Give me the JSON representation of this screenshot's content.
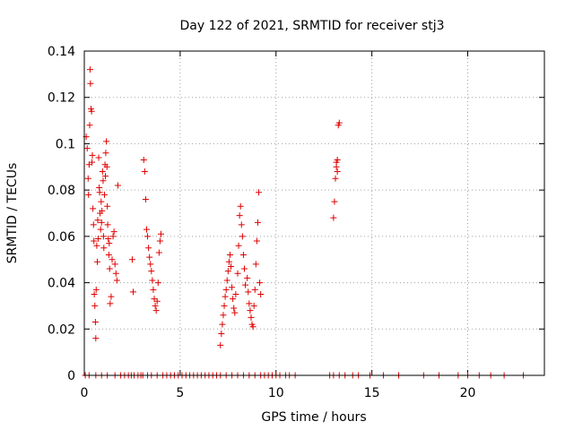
{
  "chart_data": {
    "type": "scatter",
    "title": "Day 122 of 2021, SRMTID for receiver stj3",
    "xlabel": "GPS time / hours",
    "ylabel": "SRMTID / TECUs",
    "xlim": [
      0,
      24
    ],
    "ylim": [
      0,
      0.14
    ],
    "x_ticks": [
      0,
      5,
      10,
      15,
      20
    ],
    "x_tick_labels": [
      "0",
      "5",
      "10",
      "15",
      "20"
    ],
    "y_ticks": [
      0,
      0.02,
      0.04,
      0.06,
      0.08,
      0.1,
      0.12,
      0.14
    ],
    "y_tick_labels": [
      "0",
      "0.02",
      "0.04",
      "0.06",
      "0.08",
      "0.1",
      "0.12",
      "0.14"
    ],
    "grid": true,
    "marker": "plus",
    "colors": {
      "points": "#e00000"
    },
    "x": [
      0.1,
      0.15,
      0.2,
      0.22,
      0.25,
      0.28,
      0.3,
      0.32,
      0.35,
      0.38,
      0.4,
      0.42,
      0.45,
      0.48,
      0.5,
      0.52,
      0.55,
      0.58,
      0.6,
      0.62,
      0.65,
      0.68,
      0.7,
      0.72,
      0.75,
      0.78,
      0.8,
      0.82,
      0.85,
      0.88,
      0.9,
      0.92,
      0.95,
      0.98,
      1.0,
      1.02,
      1.05,
      1.08,
      1.1,
      1.12,
      1.15,
      1.18,
      1.2,
      1.22,
      1.25,
      1.28,
      1.3,
      1.32,
      1.35,
      1.4,
      1.45,
      1.5,
      1.55,
      1.6,
      1.65,
      1.7,
      1.75,
      2.5,
      2.55,
      3.1,
      3.15,
      3.2,
      3.25,
      3.3,
      3.35,
      3.4,
      3.45,
      3.5,
      3.55,
      3.6,
      3.65,
      3.7,
      3.75,
      3.8,
      3.85,
      3.9,
      3.95,
      4.0,
      7.1,
      7.15,
      7.2,
      7.25,
      7.3,
      7.35,
      7.4,
      7.45,
      7.5,
      7.55,
      7.6,
      7.65,
      7.7,
      7.75,
      7.8,
      7.85,
      7.9,
      8.0,
      8.05,
      8.1,
      8.15,
      8.2,
      8.25,
      8.3,
      8.35,
      8.4,
      8.5,
      8.55,
      8.6,
      8.65,
      8.7,
      8.75,
      8.8,
      8.85,
      8.9,
      8.95,
      9.0,
      9.05,
      9.1,
      9.15,
      9.2,
      13.0,
      13.05,
      13.1,
      13.15,
      13.2,
      13.25,
      13.3,
      13.15,
      13.2,
      0.05,
      0.25,
      0.6,
      0.9,
      1.2,
      1.6,
      1.9,
      2.1,
      2.3,
      2.45,
      2.6,
      2.8,
      2.95,
      3.05,
      3.3,
      3.5,
      3.8,
      4.1,
      4.3,
      4.5,
      4.7,
      4.9,
      5.1,
      5.3,
      5.5,
      5.7,
      5.9,
      6.1,
      6.3,
      6.5,
      6.7,
      6.9,
      7.1,
      7.4,
      7.7,
      8.0,
      8.3,
      8.6,
      8.9,
      9.2,
      9.4,
      9.6,
      9.8,
      10.0,
      10.2,
      10.5,
      10.7,
      11.0,
      12.8,
      13.0,
      13.3,
      13.6,
      14.0,
      14.3,
      14.9,
      15.6,
      16.4,
      17.7,
      18.5,
      19.5,
      20.0,
      20.6,
      21.2,
      21.9,
      22.9
    ],
    "y": [
      0.103,
      0.098,
      0.085,
      0.078,
      0.091,
      0.108,
      0.132,
      0.126,
      0.115,
      0.114,
      0.092,
      0.095,
      0.072,
      0.065,
      0.058,
      0.035,
      0.03,
      0.023,
      0.016,
      0.037,
      0.056,
      0.049,
      0.067,
      0.059,
      0.094,
      0.081,
      0.079,
      0.07,
      0.063,
      0.075,
      0.066,
      0.071,
      0.088,
      0.084,
      0.06,
      0.055,
      0.078,
      0.091,
      0.086,
      0.096,
      0.101,
      0.09,
      0.073,
      0.065,
      0.059,
      0.052,
      0.057,
      0.046,
      0.031,
      0.034,
      0.05,
      0.06,
      0.062,
      0.048,
      0.044,
      0.041,
      0.082,
      0.05,
      0.036,
      0.093,
      0.088,
      0.076,
      0.063,
      0.06,
      0.055,
      0.051,
      0.048,
      0.045,
      0.041,
      0.037,
      0.033,
      0.03,
      0.028,
      0.032,
      0.04,
      0.053,
      0.058,
      0.061,
      0.013,
      0.018,
      0.022,
      0.026,
      0.03,
      0.034,
      0.037,
      0.041,
      0.045,
      0.049,
      0.052,
      0.047,
      0.038,
      0.033,
      0.029,
      0.027,
      0.035,
      0.044,
      0.056,
      0.069,
      0.073,
      0.065,
      0.06,
      0.052,
      0.046,
      0.039,
      0.042,
      0.036,
      0.031,
      0.028,
      0.025,
      0.022,
      0.021,
      0.03,
      0.037,
      0.048,
      0.058,
      0.066,
      0.079,
      0.04,
      0.035,
      0.068,
      0.075,
      0.085,
      0.09,
      0.093,
      0.108,
      0.109,
      0.092,
      0.088,
      0,
      0,
      0,
      0,
      0,
      0,
      0,
      0,
      0,
      0,
      0,
      0,
      0,
      0,
      0,
      0,
      0,
      0,
      0,
      0,
      0,
      0,
      0,
      0,
      0,
      0,
      0,
      0,
      0,
      0,
      0,
      0,
      0,
      0,
      0,
      0,
      0,
      0,
      0,
      0,
      0,
      0,
      0,
      0,
      0,
      0,
      0,
      0,
      0,
      0,
      0,
      0,
      0,
      0,
      0,
      0,
      0,
      0,
      0,
      0,
      0,
      0,
      0,
      0,
      0
    ]
  }
}
